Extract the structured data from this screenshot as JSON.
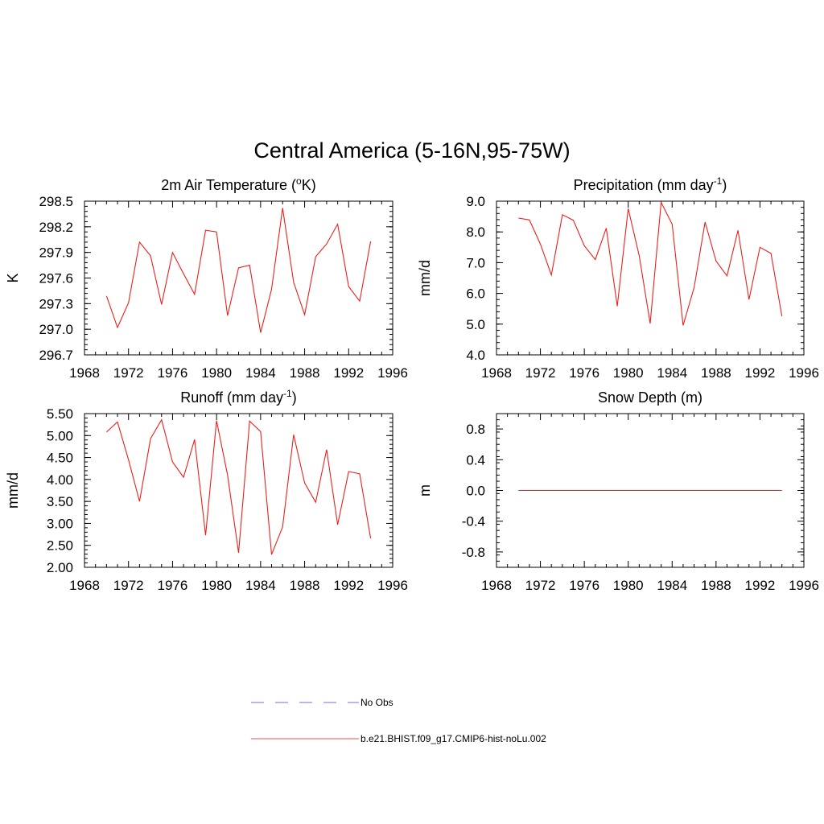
{
  "figure": {
    "title": "Central America (5-16N,95-75W)"
  },
  "colors": {
    "model_line": "#e8211d",
    "obs_line": "#8b8bee",
    "axis": "#000000"
  },
  "legend": {
    "items": [
      {
        "label": "No Obs",
        "style": "dashed",
        "color": "#8b8bee"
      },
      {
        "label": "b.e21.BHIST.f09_g17.CMIP6-hist-noLu.002",
        "style": "solid",
        "color": "#f07070"
      }
    ]
  },
  "chart_data": [
    {
      "type": "line",
      "title_main": "2m Air Temperature (",
      "title_sup": "o",
      "title_tail": "K)",
      "ylabel": "K",
      "xlim": [
        1968,
        1996
      ],
      "ylim": [
        296.7,
        298.5
      ],
      "xticks": [
        1968,
        1972,
        1976,
        1980,
        1984,
        1988,
        1992,
        1996
      ],
      "yticks": [
        "296.7",
        "297.0",
        "297.3",
        "297.6",
        "297.9",
        "298.2",
        "298.5"
      ],
      "x": [
        1970,
        1971,
        1972,
        1973,
        1974,
        1975,
        1976,
        1977,
        1978,
        1979,
        1980,
        1981,
        1982,
        1983,
        1984,
        1985,
        1986,
        1987,
        1988,
        1989,
        1990,
        1991,
        1992,
        1993,
        1994
      ],
      "series": [
        {
          "values": [
            297.39,
            297.02,
            297.31,
            298.02,
            297.86,
            297.29,
            297.9,
            297.65,
            297.41,
            298.16,
            298.14,
            297.16,
            297.72,
            297.75,
            296.96,
            297.47,
            298.42,
            297.55,
            297.17,
            297.85,
            298.0,
            298.23,
            297.5,
            297.33,
            298.03
          ]
        }
      ]
    },
    {
      "type": "line",
      "title_main": "Precipitation (mm day",
      "title_sup": "-1",
      "title_tail": ")",
      "ylabel": "mm/d",
      "xlim": [
        1968,
        1996
      ],
      "ylim": [
        4.0,
        9.0
      ],
      "xticks": [
        1968,
        1972,
        1976,
        1980,
        1984,
        1988,
        1992,
        1996
      ],
      "yticks": [
        "4.0",
        "5.0",
        "6.0",
        "7.0",
        "8.0",
        "9.0"
      ],
      "x": [
        1970,
        1971,
        1972,
        1973,
        1974,
        1975,
        1976,
        1977,
        1978,
        1979,
        1980,
        1981,
        1982,
        1983,
        1984,
        1985,
        1986,
        1987,
        1988,
        1989,
        1990,
        1991,
        1992,
        1993,
        1994
      ],
      "series": [
        {
          "values": [
            8.45,
            8.39,
            7.6,
            6.6,
            8.56,
            8.38,
            7.55,
            7.1,
            8.12,
            5.58,
            8.76,
            7.22,
            5.02,
            8.96,
            8.25,
            4.96,
            6.19,
            8.32,
            7.05,
            6.57,
            8.05,
            5.8,
            7.5,
            7.3,
            5.26
          ]
        }
      ]
    },
    {
      "type": "line",
      "title_main": "Runoff (mm day",
      "title_sup": "-1",
      "title_tail": ")",
      "ylabel": "mm/d",
      "xlim": [
        1968,
        1996
      ],
      "ylim": [
        2.0,
        5.5
      ],
      "xticks": [
        1968,
        1972,
        1976,
        1980,
        1984,
        1988,
        1992,
        1996
      ],
      "yticks": [
        "2.00",
        "2.50",
        "3.00",
        "3.50",
        "4.00",
        "4.50",
        "5.00",
        "5.50"
      ],
      "x": [
        1970,
        1971,
        1972,
        1973,
        1974,
        1975,
        1976,
        1977,
        1978,
        1979,
        1980,
        1981,
        1982,
        1983,
        1984,
        1985,
        1986,
        1987,
        1988,
        1989,
        1990,
        1991,
        1992,
        1993,
        1994
      ],
      "series": [
        {
          "values": [
            5.08,
            5.31,
            4.45,
            3.5,
            4.93,
            5.36,
            4.4,
            4.05,
            4.91,
            2.73,
            5.34,
            4.1,
            2.33,
            5.33,
            5.09,
            2.29,
            2.92,
            5.02,
            3.92,
            3.48,
            4.68,
            2.97,
            4.18,
            4.13,
            2.66
          ]
        }
      ]
    },
    {
      "type": "line",
      "title_main": "Snow Depth (m)",
      "title_sup": "",
      "title_tail": "",
      "ylabel": "m",
      "xlim": [
        1968,
        1996
      ],
      "ylim": [
        -1.0,
        1.0
      ],
      "xticks": [
        1968,
        1972,
        1976,
        1980,
        1984,
        1988,
        1992,
        1996
      ],
      "yticks": [
        "-0.8",
        "-0.4",
        "0.0",
        "0.4",
        "0.8"
      ],
      "x": [
        1970,
        1994
      ],
      "series": [
        {
          "values": [
            0.0,
            0.0
          ]
        }
      ]
    }
  ]
}
